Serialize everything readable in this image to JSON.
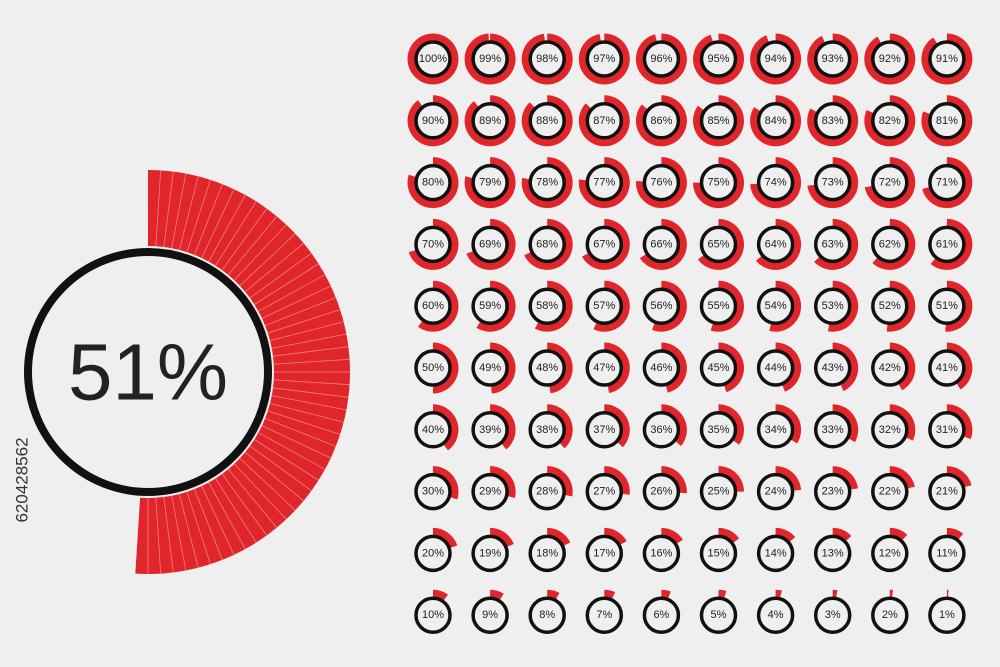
{
  "watermark": "620428562",
  "big": {
    "label": "51%",
    "value": 51
  },
  "gauges": [
    {
      "label": "100%",
      "value": 100
    },
    {
      "label": "99%",
      "value": 99
    },
    {
      "label": "98%",
      "value": 98
    },
    {
      "label": "97%",
      "value": 97
    },
    {
      "label": "96%",
      "value": 96
    },
    {
      "label": "95%",
      "value": 95
    },
    {
      "label": "94%",
      "value": 94
    },
    {
      "label": "93%",
      "value": 93
    },
    {
      "label": "92%",
      "value": 92
    },
    {
      "label": "91%",
      "value": 91
    },
    {
      "label": "90%",
      "value": 90
    },
    {
      "label": "89%",
      "value": 89
    },
    {
      "label": "88%",
      "value": 88
    },
    {
      "label": "87%",
      "value": 87
    },
    {
      "label": "86%",
      "value": 86
    },
    {
      "label": "85%",
      "value": 85
    },
    {
      "label": "84%",
      "value": 84
    },
    {
      "label": "83%",
      "value": 83
    },
    {
      "label": "82%",
      "value": 82
    },
    {
      "label": "81%",
      "value": 81
    },
    {
      "label": "80%",
      "value": 80
    },
    {
      "label": "79%",
      "value": 79
    },
    {
      "label": "78%",
      "value": 78
    },
    {
      "label": "77%",
      "value": 77
    },
    {
      "label": "76%",
      "value": 76
    },
    {
      "label": "75%",
      "value": 75
    },
    {
      "label": "74%",
      "value": 74
    },
    {
      "label": "73%",
      "value": 73
    },
    {
      "label": "72%",
      "value": 72
    },
    {
      "label": "71%",
      "value": 71
    },
    {
      "label": "70%",
      "value": 70
    },
    {
      "label": "69%",
      "value": 69
    },
    {
      "label": "68%",
      "value": 68
    },
    {
      "label": "67%",
      "value": 67
    },
    {
      "label": "66%",
      "value": 66
    },
    {
      "label": "65%",
      "value": 65
    },
    {
      "label": "64%",
      "value": 64
    },
    {
      "label": "63%",
      "value": 63
    },
    {
      "label": "62%",
      "value": 62
    },
    {
      "label": "61%",
      "value": 61
    },
    {
      "label": "60%",
      "value": 60
    },
    {
      "label": "59%",
      "value": 59
    },
    {
      "label": "58%",
      "value": 58
    },
    {
      "label": "57%",
      "value": 57
    },
    {
      "label": "56%",
      "value": 56
    },
    {
      "label": "55%",
      "value": 55
    },
    {
      "label": "54%",
      "value": 54
    },
    {
      "label": "53%",
      "value": 53
    },
    {
      "label": "52%",
      "value": 52
    },
    {
      "label": "51%",
      "value": 51
    },
    {
      "label": "50%",
      "value": 50
    },
    {
      "label": "49%",
      "value": 49
    },
    {
      "label": "48%",
      "value": 48
    },
    {
      "label": "47%",
      "value": 47
    },
    {
      "label": "46%",
      "value": 46
    },
    {
      "label": "45%",
      "value": 45
    },
    {
      "label": "44%",
      "value": 44
    },
    {
      "label": "43%",
      "value": 43
    },
    {
      "label": "42%",
      "value": 42
    },
    {
      "label": "41%",
      "value": 41
    },
    {
      "label": "40%",
      "value": 40
    },
    {
      "label": "39%",
      "value": 39
    },
    {
      "label": "38%",
      "value": 38
    },
    {
      "label": "37%",
      "value": 37
    },
    {
      "label": "36%",
      "value": 36
    },
    {
      "label": "35%",
      "value": 35
    },
    {
      "label": "34%",
      "value": 34
    },
    {
      "label": "33%",
      "value": 33
    },
    {
      "label": "32%",
      "value": 32
    },
    {
      "label": "31%",
      "value": 31
    },
    {
      "label": "30%",
      "value": 30
    },
    {
      "label": "29%",
      "value": 29
    },
    {
      "label": "28%",
      "value": 28
    },
    {
      "label": "27%",
      "value": 27
    },
    {
      "label": "26%",
      "value": 26
    },
    {
      "label": "25%",
      "value": 25
    },
    {
      "label": "24%",
      "value": 24
    },
    {
      "label": "23%",
      "value": 23
    },
    {
      "label": "22%",
      "value": 22
    },
    {
      "label": "21%",
      "value": 21
    },
    {
      "label": "20%",
      "value": 20
    },
    {
      "label": "19%",
      "value": 19
    },
    {
      "label": "18%",
      "value": 18
    },
    {
      "label": "17%",
      "value": 17
    },
    {
      "label": "16%",
      "value": 16
    },
    {
      "label": "15%",
      "value": 15
    },
    {
      "label": "14%",
      "value": 14
    },
    {
      "label": "13%",
      "value": 13
    },
    {
      "label": "12%",
      "value": 12
    },
    {
      "label": "11%",
      "value": 11
    },
    {
      "label": "10%",
      "value": 10
    },
    {
      "label": "9%",
      "value": 9
    },
    {
      "label": "8%",
      "value": 8
    },
    {
      "label": "7%",
      "value": 7
    },
    {
      "label": "6%",
      "value": 6
    },
    {
      "label": "5%",
      "value": 5
    },
    {
      "label": "4%",
      "value": 4
    },
    {
      "label": "3%",
      "value": 3
    },
    {
      "label": "2%",
      "value": 2
    },
    {
      "label": "1%",
      "value": 1
    }
  ]
}
